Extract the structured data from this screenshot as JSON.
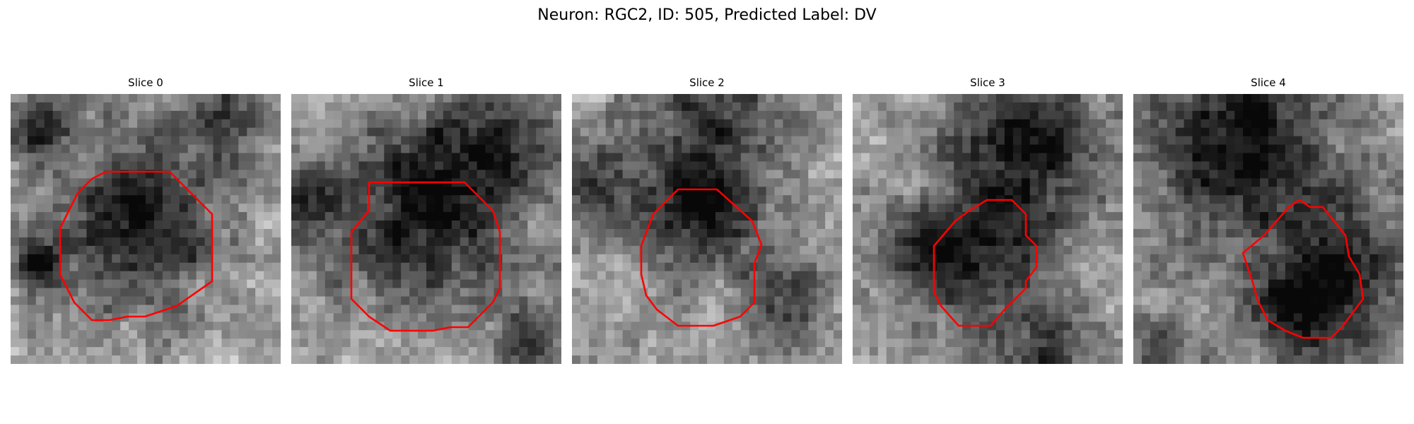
{
  "figure": {
    "title": "Neuron: RGC2, ID: 505, Predicted Label: DV"
  },
  "panels": [
    {
      "title": "Slice 0"
    },
    {
      "title": "Slice 1"
    },
    {
      "title": "Slice 2"
    },
    {
      "title": "Slice 3"
    },
    {
      "title": "Slice 4"
    }
  ],
  "colors": {
    "contour": "#ff0000"
  }
}
